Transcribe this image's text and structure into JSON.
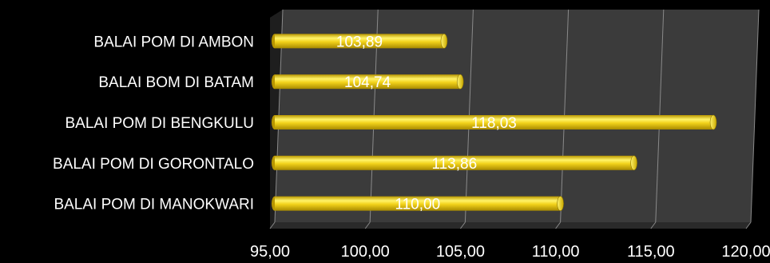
{
  "chart_data": {
    "type": "bar",
    "orientation": "horizontal",
    "style": "3d-cylinder",
    "categories": [
      "BALAI POM DI AMBON",
      "BALAI BOM DI BATAM",
      "BALAI POM DI BENGKULU",
      "BALAI POM DI GORONTALO",
      "BALAI POM DI MANOKWARI"
    ],
    "values": [
      103.89,
      104.74,
      118.03,
      113.86,
      110.0
    ],
    "data_labels": [
      "103,89",
      "104,74",
      "118,03",
      "113,86",
      "110,00"
    ],
    "xlim": [
      95,
      120
    ],
    "x_ticks": [
      95,
      100,
      105,
      110,
      115,
      120
    ],
    "x_tick_labels": [
      "95,00",
      "100,00",
      "105,00",
      "110,00",
      "115,00",
      "120,00"
    ],
    "grid": true,
    "legend": "none",
    "colors": {
      "background": "#000000",
      "plot_wall": "#3b3b3b",
      "plot_floor": "#2a2a2a",
      "gridline": "#8a8a8a",
      "bar_fill": "#f2d21a",
      "bar_highlight": "#fff36a",
      "bar_shadow": "#b89600",
      "text": "#ffffff"
    }
  }
}
